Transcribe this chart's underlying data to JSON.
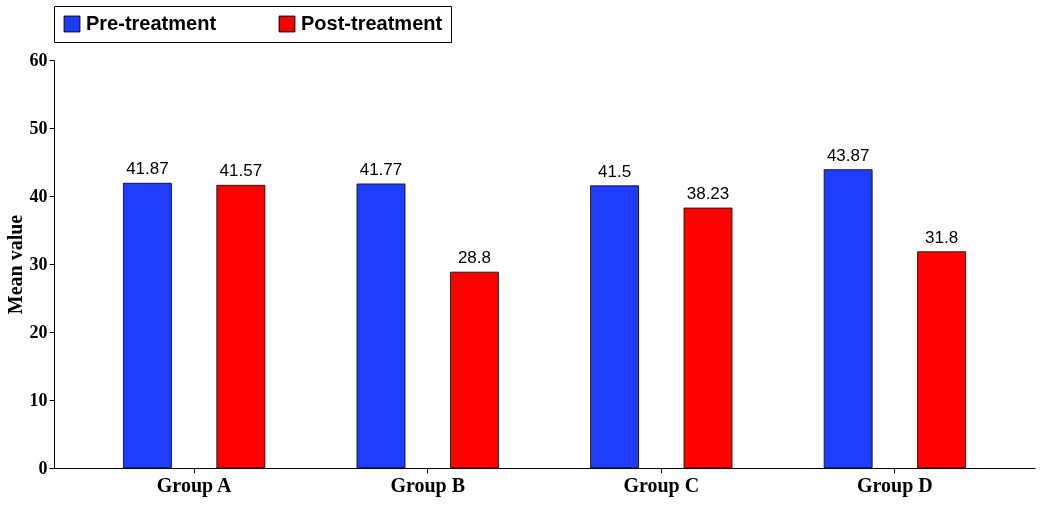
{
  "chart_data": {
    "type": "bar",
    "ylabel": "Mean value",
    "categories": [
      "Group A",
      "Group B",
      "Group C",
      "Group D"
    ],
    "series": [
      {
        "name": "Pre-treatment",
        "color": "#1f3dff",
        "values": [
          41.87,
          41.77,
          41.5,
          43.87
        ]
      },
      {
        "name": "Post-treatment",
        "color": "#ff0000",
        "values": [
          41.57,
          28.8,
          38.23,
          31.8
        ]
      }
    ],
    "ylim": [
      0,
      60
    ],
    "yticks": [
      0,
      10,
      20,
      30,
      40,
      50,
      60
    ],
    "grid": false,
    "legend": "top",
    "data_labels": true
  }
}
